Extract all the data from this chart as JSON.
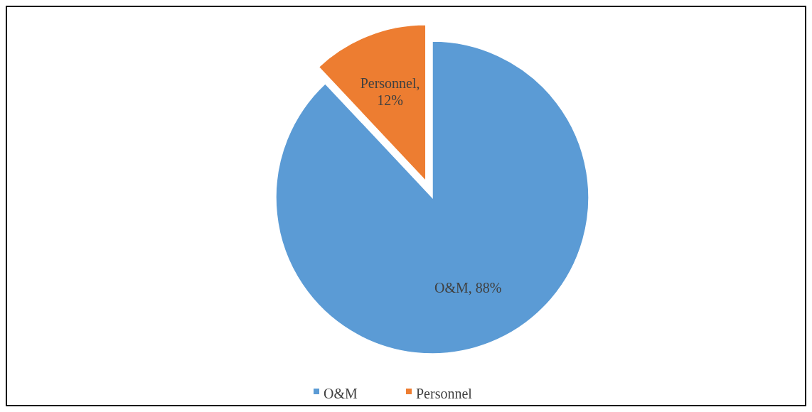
{
  "chart_data": {
    "type": "pie",
    "categories": [
      "O&M",
      "Personnel"
    ],
    "values": [
      88,
      12
    ],
    "colors": [
      "#5b9bd5",
      "#ed7d31"
    ],
    "value_labels": [
      "O&M, 88%",
      "Personnel, 12%"
    ],
    "legend": "bottom"
  }
}
